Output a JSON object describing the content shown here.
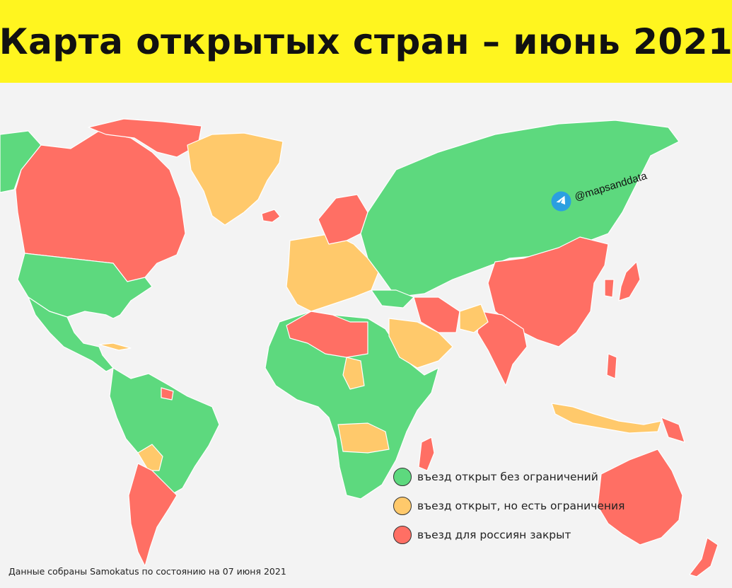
{
  "title": "Карта открытых стран – июнь 2021",
  "handle": "@mapsanddata",
  "colors": {
    "banner": "#fff51f",
    "open": "#5dd97e",
    "restricted": "#ffc96b",
    "closed": "#ff6f64",
    "background": "#f3f3f3"
  },
  "legend": [
    {
      "status": "open",
      "label": "въезд открыт без ограничений"
    },
    {
      "status": "restricted",
      "label": "въезд открыт, но есть ограничения"
    },
    {
      "status": "closed",
      "label": "въезд для россиян закрыт"
    }
  ],
  "source": "Данные собраны Samokatus по состоянию на 07 июня 2021",
  "icons": {
    "telegram": "telegram-icon"
  }
}
